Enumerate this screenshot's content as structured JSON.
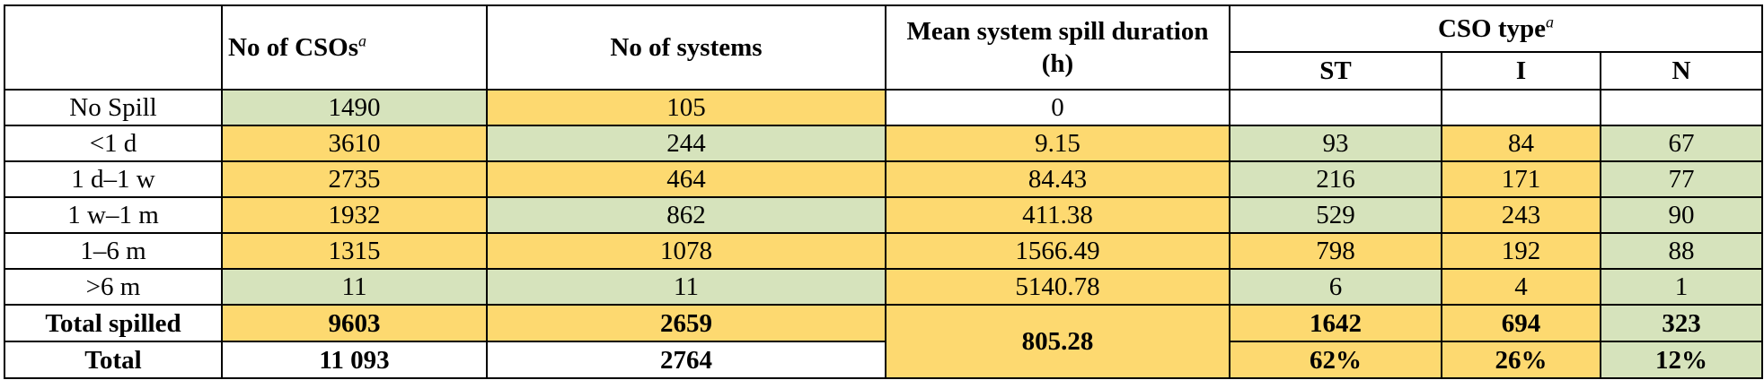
{
  "table": {
    "headers": {
      "no_csos": "No of CSOs",
      "no_csos_note": "a",
      "no_systems": "No of systems",
      "mean_spill": "Mean system spill duration (h)",
      "cso_type": "CSO type",
      "cso_type_note": "a",
      "st": "ST",
      "i": "I",
      "n": "N"
    },
    "colors": {
      "yellow": "#fdd970",
      "green": "#d6e3bc",
      "white": "#ffffff"
    },
    "rows": [
      {
        "label": "No Spill",
        "csos": "1490",
        "systems": "105",
        "mean": "0",
        "st": "",
        "i": "",
        "n": "",
        "fill": [
          "g",
          "y",
          "w",
          "w",
          "w",
          "w"
        ]
      },
      {
        "label": "<1 d",
        "csos": "3610",
        "systems": "244",
        "mean": "9.15",
        "st": "93",
        "i": "84",
        "n": "67",
        "fill": [
          "y",
          "g",
          "y",
          "g",
          "y",
          "g"
        ]
      },
      {
        "label": "1 d–1 w",
        "csos": "2735",
        "systems": "464",
        "mean": "84.43",
        "st": "216",
        "i": "171",
        "n": "77",
        "fill": [
          "y",
          "y",
          "y",
          "g",
          "y",
          "g"
        ]
      },
      {
        "label": "1 w–1 m",
        "csos": "1932",
        "systems": "862",
        "mean": "411.38",
        "st": "529",
        "i": "243",
        "n": "90",
        "fill": [
          "y",
          "g",
          "y",
          "g",
          "y",
          "g"
        ]
      },
      {
        "label": "1–6 m",
        "csos": "1315",
        "systems": "1078",
        "mean": "1566.49",
        "st": "798",
        "i": "192",
        "n": "88",
        "fill": [
          "y",
          "y",
          "y",
          "y",
          "y",
          "g"
        ]
      },
      {
        "label": ">6 m",
        "csos": "11",
        "systems": "11",
        "mean": "5140.78",
        "st": "6",
        "i": "4",
        "n": "1",
        "fill": [
          "g",
          "g",
          "y",
          "g",
          "y",
          "g"
        ]
      }
    ],
    "total_spilled": {
      "label": "Total spilled",
      "csos": "9603",
      "systems": "2659",
      "mean": "805.28",
      "st": "1642",
      "i": "694",
      "n": "323"
    },
    "total": {
      "label": "Total",
      "csos": "11 093",
      "systems": "2764",
      "st": "62%",
      "i": "26%",
      "n": "12%"
    }
  }
}
